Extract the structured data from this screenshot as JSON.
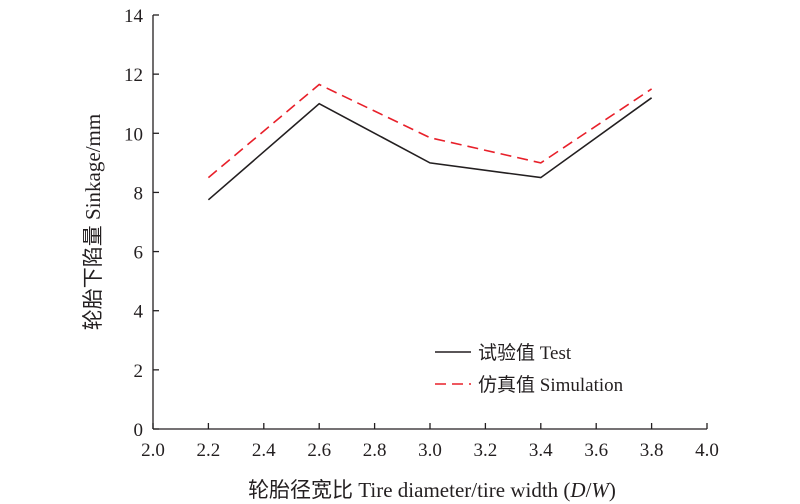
{
  "chart_data": {
    "type": "line",
    "xlabel": "轮胎径宽比 Tire diameter/tire width (D/W)",
    "xlabel_parts": {
      "prefix": "轮胎径宽比 Tire diameter/tire width (",
      "italic_d": "D",
      "slash": "/",
      "italic_w": "W",
      "suffix": ")"
    },
    "ylabel": "轮胎下陷量 Sinkage/mm",
    "xlim": [
      2.0,
      4.0
    ],
    "ylim": [
      0,
      14
    ],
    "xticks": [
      "2.0",
      "2.2",
      "2.4",
      "2.6",
      "2.8",
      "3.0",
      "3.2",
      "3.4",
      "3.6",
      "3.8",
      "4.0"
    ],
    "yticks": [
      "0",
      "2",
      "4",
      "6",
      "8",
      "10",
      "12",
      "14"
    ],
    "grid": false,
    "legend_position": "bottom-right",
    "series": [
      {
        "name": "试验值 Test",
        "style": "solid",
        "color": "#231f20",
        "x": [
          2.2,
          2.6,
          3.0,
          3.4,
          3.8
        ],
        "y": [
          7.75,
          11.0,
          9.0,
          8.5,
          11.2
        ]
      },
      {
        "name": "仿真值 Simulation",
        "style": "dashed",
        "color": "#e8202a",
        "x": [
          2.2,
          2.6,
          3.0,
          3.4,
          3.8
        ],
        "y": [
          8.5,
          11.65,
          9.85,
          9.0,
          11.5
        ]
      }
    ]
  }
}
